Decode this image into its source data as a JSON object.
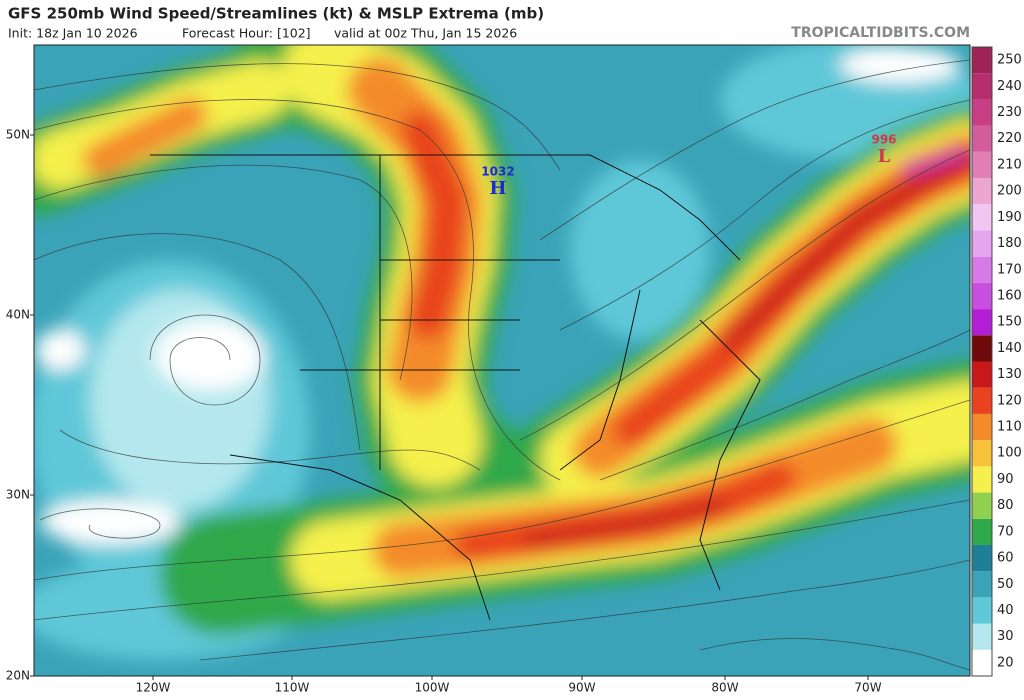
{
  "header": {
    "title": "GFS 250mb Wind Speed/Streamlines (kt) & MSLP Extrema (mb)",
    "init": "Init: 18z Jan 10 2026",
    "forecast_hour": "Forecast Hour: [102]",
    "valid": "valid at 00z Thu, Jan 15 2026",
    "source": "TROPICALTIDBITS.COM"
  },
  "colorbar": {
    "labels": [
      20,
      30,
      40,
      50,
      60,
      70,
      80,
      90,
      100,
      110,
      120,
      130,
      140,
      150,
      160,
      170,
      180,
      190,
      200,
      210,
      220,
      230,
      240,
      250
    ],
    "colors": [
      "#ffffff",
      "#b4e8ee",
      "#5fc8d8",
      "#3aa3b8",
      "#1f7f96",
      "#2da84a",
      "#8fd14f",
      "#f5f04b",
      "#f7c23a",
      "#f48b2a",
      "#e8421f",
      "#c8181a",
      "#6f0a0a",
      "#b21fd6",
      "#c84fe0",
      "#d67ae8",
      "#e6a6ef",
      "#f0c6f2",
      "#eda6cf",
      "#e07fb4",
      "#d35c9b",
      "#c83e84",
      "#b72e6e",
      "#9e2356"
    ]
  },
  "map": {
    "lat_labels": [
      "50N",
      "40N",
      "30N",
      "20N"
    ],
    "lon_labels": [
      "120W",
      "110W",
      "100W",
      "90W",
      "80W",
      "70W"
    ],
    "extrema": [
      {
        "pressure": "1032",
        "symbol": "H"
      },
      {
        "pressure": "996",
        "symbol": "L"
      }
    ]
  }
}
